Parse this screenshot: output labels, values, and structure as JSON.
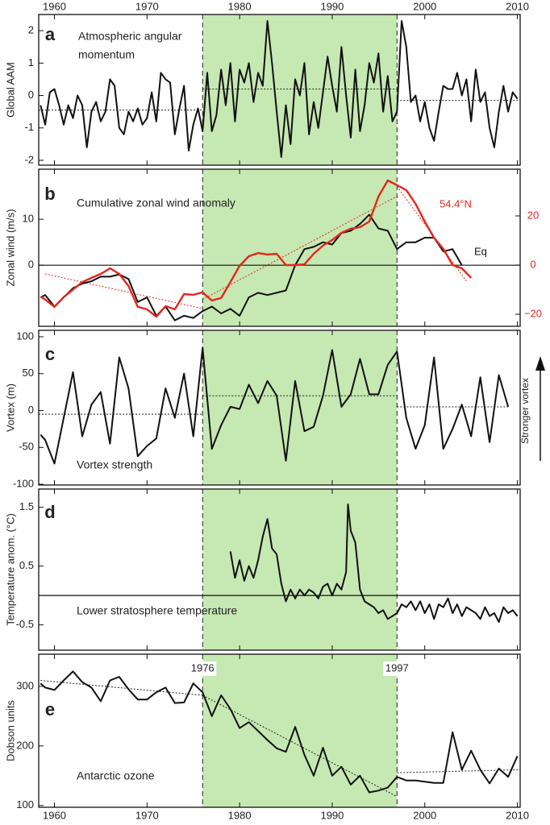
{
  "chart_data": [
    {
      "type": "line",
      "title": [
        "Atmospheric angular",
        "momentum"
      ],
      "letter": "a",
      "ylabel": "Global AAM",
      "xlim": [
        1958.3,
        2010.3
      ],
      "xticks": [
        1960,
        1970,
        1980,
        1990,
        2000,
        2010
      ],
      "xtick_labels": "top",
      "ylim": [
        -2.15,
        2.5
      ],
      "yticks": [
        -2,
        -1,
        0,
        1,
        2
      ],
      "highlight": [
        1976,
        1997
      ],
      "highlight_color": "#c6e8b2",
      "x": [
        1958.5,
        1959,
        1959.5,
        1960,
        1960.5,
        1961,
        1961.5,
        1962,
        1962.5,
        1963,
        1963.5,
        1964,
        1964.5,
        1965,
        1965.5,
        1966,
        1966.5,
        1967,
        1967.5,
        1968,
        1968.5,
        1969,
        1969.5,
        1970,
        1970.5,
        1971,
        1971.5,
        1972,
        1972.5,
        1973,
        1973.5,
        1974,
        1974.5,
        1975,
        1975.5,
        1976,
        1976.5,
        1977,
        1977.5,
        1978,
        1978.5,
        1979,
        1979.5,
        1980,
        1980.5,
        1981,
        1981.5,
        1982,
        1982.5,
        1983,
        1983.5,
        1984,
        1984.5,
        1985,
        1985.5,
        1986,
        1986.5,
        1987,
        1987.5,
        1988,
        1988.5,
        1989,
        1989.5,
        1990,
        1990.5,
        1991,
        1991.5,
        1992,
        1992.5,
        1993,
        1993.5,
        1994,
        1994.5,
        1995,
        1995.5,
        1996,
        1996.5,
        1997,
        1997.5,
        1998,
        1998.5,
        1999,
        1999.5,
        2000,
        2000.5,
        2001,
        2001.5,
        2002,
        2002.5,
        2003,
        2003.5,
        2004,
        2004.5,
        2005,
        2005.5,
        2006,
        2006.5,
        2007,
        2007.5,
        2008,
        2008.5,
        2009,
        2009.5,
        2010
      ],
      "series": [
        {
          "color": "#111111",
          "values": [
            -0.3,
            -0.9,
            0.1,
            0.2,
            -0.3,
            -0.9,
            -0.3,
            -0.7,
            0,
            -0.3,
            -1.6,
            -0.5,
            -0.2,
            -0.8,
            -0.5,
            0.5,
            0.3,
            -1.0,
            -1.2,
            -0.5,
            -0.8,
            -0.4,
            -0.9,
            -0.7,
            0.1,
            -0.8,
            0.7,
            0.5,
            0.4,
            -1.2,
            -0.4,
            0.3,
            -1.7,
            -0.9,
            -0.4,
            -1.1,
            0.7,
            -1.1,
            -0.6,
            0.8,
            -0.3,
            1.0,
            -0.8,
            0.8,
            0.4,
            1.0,
            -0.2,
            0.7,
            0.3,
            2.3,
            1.0,
            -0.5,
            -1.9,
            -0.3,
            -1.5,
            0.5,
            0,
            1.0,
            -1.2,
            -0.2,
            -1.0,
            0.1,
            1.2,
            0.3,
            -0.5,
            1.5,
            0,
            -1.3,
            0.8,
            -1.1,
            -0.3,
            1.0,
            0.4,
            1.3,
            -0.5,
            0.6,
            -0.8,
            -0.5,
            2.3,
            1.5,
            -0.2,
            0,
            -0.8,
            -0.2,
            -1.0,
            -1.4,
            -0.5,
            0.3,
            0.2,
            0.2,
            0.7,
            0,
            0.5,
            -0.8,
            0.8,
            -0.2,
            0.1,
            -1.0,
            -1.6,
            -0.5,
            0.3,
            -0.5,
            0.1,
            -0.1
          ]
        }
      ],
      "reference_lines": [
        {
          "x": [
            1958.3,
            1976
          ],
          "values": [
            -0.45,
            -0.45
          ]
        },
        {
          "x": [
            1976,
            1997
          ],
          "values": [
            0.2,
            0.2
          ]
        },
        {
          "x": [
            1997,
            2010.3
          ],
          "values": [
            -0.15,
            -0.15
          ]
        }
      ]
    },
    {
      "type": "line",
      "title": [
        "Cumulative zonal wind anomaly"
      ],
      "letter": "b",
      "ylabel": "Zonal wind (m/s)",
      "xlim": [
        1958.3,
        2010.3
      ],
      "xticks": [
        1960,
        1970,
        1980,
        1990,
        2000,
        2010
      ],
      "ylim": [
        -13.3,
        20.9
      ],
      "yticks": [
        0,
        10
      ],
      "y2lim": [
        -24.9,
        39.0
      ],
      "y2ticks": [
        {
          "value": -20,
          "label": "−20"
        },
        0,
        20
      ],
      "y2_color": "#e8251c",
      "zero_line": true,
      "highlight": [
        1976,
        1997
      ],
      "highlight_color": "#c6e8b2",
      "x": [
        1958.5,
        1959,
        1960,
        1961,
        1962,
        1963,
        1964,
        1965,
        1966,
        1967,
        1968,
        1969,
        1970,
        1971,
        1972,
        1973,
        1974,
        1975,
        1976,
        1977,
        1978,
        1979,
        1980,
        1981,
        1982,
        1983,
        1984,
        1985,
        1986,
        1987,
        1988,
        1989,
        1990,
        1991,
        1992,
        1993,
        1994,
        1995,
        1996,
        1997,
        1998,
        1999,
        2000,
        2001,
        2002,
        2003,
        2004,
        2005
      ],
      "series": [
        {
          "name": "Eq",
          "color": "#111111",
          "values": [
            -7,
            -6.5,
            -9,
            -7,
            -5,
            -4,
            -3.5,
            -2.5,
            -2.5,
            -2,
            -3,
            -8,
            -7,
            -11,
            -9,
            -12,
            -11,
            -11.5,
            -10,
            -9,
            -10.5,
            -9.5,
            -11,
            -7,
            -6,
            -6.5,
            -6,
            -5.5,
            0,
            3.5,
            4,
            5,
            4.5,
            7,
            7.5,
            9,
            11,
            8,
            7.5,
            3.5,
            5,
            5,
            6,
            6,
            3,
            3.5,
            0,
            null
          ]
        },
        {
          "name": "54.4°N",
          "color": "#e8251c",
          "axis": "y2",
          "values": [
            -12.8,
            -14,
            -17,
            -13,
            -10,
            -6.9,
            -5.2,
            -3.6,
            -1.3,
            -3.6,
            -8.5,
            -17,
            -18,
            -21,
            -16.7,
            -18,
            -11.8,
            -12.1,
            -11.1,
            -14.4,
            -13.4,
            -6.9,
            -0.3,
            3.6,
            4.9,
            4.3,
            4.6,
            0,
            0,
            0.3,
            4.6,
            7.9,
            10.2,
            13.1,
            14.8,
            15.4,
            17.7,
            27.9,
            34.4,
            32.5,
            30.5,
            24.9,
            17.7,
            11.1,
            6.6,
            0,
            -1.3,
            -5.2
          ]
        }
      ],
      "reference_lines": [
        {
          "x": [
            1959,
            1976
          ],
          "values": [
            -3.6,
            -17.7
          ],
          "color": "#e8251c",
          "axis": "y2"
        },
        {
          "x": [
            1976,
            1997
          ],
          "values": [
            -14,
            28
          ],
          "color": "#e8251c",
          "axis": "y2"
        },
        {
          "x": [
            1997,
            2004.5
          ],
          "values": [
            32,
            -6.5
          ],
          "color": "#e8251c",
          "axis": "y2"
        }
      ]
    },
    {
      "type": "line",
      "title": [
        "Vortex strength"
      ],
      "letter": "c",
      "ylabel": "Vortex (m)",
      "side_label": "Stronger vortex",
      "xlim": [
        1958.3,
        2010.3
      ],
      "xticks": [
        1960,
        1970,
        1980,
        1990,
        2000,
        2010
      ],
      "ylim": [
        -101,
        108.7
      ],
      "yticks": [
        -100,
        -50,
        0,
        50,
        100
      ],
      "highlight": [
        1976,
        1997
      ],
      "highlight_color": "#c6e8b2",
      "x": [
        1958.5,
        1959,
        1960,
        1961,
        1962,
        1963,
        1964,
        1965,
        1966,
        1967,
        1968,
        1969,
        1970,
        1971,
        1972,
        1973,
        1974,
        1975,
        1976,
        1977,
        1978,
        1979,
        1980,
        1981,
        1982,
        1983,
        1984,
        1985,
        1986,
        1987,
        1988,
        1989,
        1990,
        1991,
        1992,
        1993,
        1994,
        1995,
        1996,
        1997,
        1998,
        1999,
        2000,
        2001,
        2002,
        2003,
        2004,
        2005,
        2006,
        2007,
        2008,
        2009
      ],
      "series": [
        {
          "color": "#111111",
          "values": [
            -33,
            -40,
            -72,
            -10,
            52,
            -35,
            8,
            25,
            -45,
            72,
            30,
            -62,
            -48,
            -38,
            30,
            -10,
            50,
            -35,
            85,
            -52,
            -20,
            5,
            2,
            35,
            10,
            40,
            20,
            -68,
            40,
            -28,
            -22,
            20,
            82,
            5,
            22,
            70,
            22,
            22,
            62,
            80,
            -10,
            -52,
            -20,
            72,
            -52,
            -25,
            8,
            -35,
            45,
            -43,
            48,
            5
          ]
        }
      ],
      "reference_lines": [
        {
          "x": [
            1958.3,
            1976
          ],
          "values": [
            -5,
            -5
          ]
        },
        {
          "x": [
            1976,
            1997
          ],
          "values": [
            20,
            20
          ]
        },
        {
          "x": [
            1997,
            2009
          ],
          "values": [
            5,
            5
          ]
        }
      ]
    },
    {
      "type": "line",
      "title": [
        "Lower stratosphere temperature"
      ],
      "letter": "d",
      "ylabel": "Temperature anom. (°C)",
      "xlim": [
        1958.3,
        2010.3
      ],
      "xticks": [
        1960,
        1970,
        1980,
        1990,
        2000,
        2010
      ],
      "ylim": [
        -0.93,
        1.81
      ],
      "yticks": [
        -0.5,
        0.5,
        1.5
      ],
      "zero_line": true,
      "highlight": [
        1976,
        1997
      ],
      "highlight_color": "#c6e8b2",
      "x": [
        1979,
        1979.5,
        1980,
        1980.5,
        1981,
        1981.5,
        1982,
        1982.5,
        1983,
        1983.5,
        1984,
        1984.5,
        1985,
        1985.5,
        1986,
        1986.5,
        1987,
        1987.5,
        1988,
        1988.5,
        1989,
        1989.5,
        1990,
        1990.5,
        1991,
        1991.5,
        1991.7,
        1992,
        1992.5,
        1993,
        1993.5,
        1994,
        1994.5,
        1995,
        1995.5,
        1996,
        1996.5,
        1997,
        1997.5,
        1998,
        1998.5,
        1999,
        1999.5,
        2000,
        2000.5,
        2001,
        2001.5,
        2002,
        2002.5,
        2003,
        2003.5,
        2004,
        2004.5,
        2005,
        2005.5,
        2006,
        2006.5,
        2007,
        2007.5,
        2008,
        2008.5,
        2009,
        2009.5,
        2010
      ],
      "series": [
        {
          "color": "#111111",
          "values": [
            0.75,
            0.3,
            0.6,
            0.25,
            0.5,
            0.3,
            0.6,
            1.0,
            1.3,
            0.8,
            0.7,
            0.2,
            -0.1,
            0.1,
            -0.05,
            0.1,
            0,
            0.1,
            0.05,
            -0.05,
            0.15,
            0.2,
            0,
            0.2,
            0.1,
            0.4,
            1.55,
            1.1,
            0.9,
            0.1,
            -0.1,
            -0.15,
            -0.2,
            -0.3,
            -0.25,
            -0.4,
            -0.35,
            -0.3,
            -0.15,
            -0.2,
            -0.1,
            -0.25,
            -0.1,
            -0.3,
            -0.15,
            -0.4,
            -0.15,
            -0.2,
            -0.05,
            -0.3,
            -0.15,
            -0.35,
            -0.2,
            -0.25,
            -0.3,
            -0.4,
            -0.2,
            -0.35,
            -0.3,
            -0.45,
            -0.2,
            -0.3,
            -0.25,
            -0.35
          ]
        }
      ]
    },
    {
      "type": "line",
      "title": [
        "Antarctic ozone"
      ],
      "letter": "e",
      "ylabel": "Dobson units",
      "xlim": [
        1958.3,
        2010.3
      ],
      "xticks": [
        1960,
        1970,
        1980,
        1990,
        2000,
        2010
      ],
      "xtick_labels": "bottom",
      "ylim": [
        97,
        354
      ],
      "yticks": [
        100,
        200,
        300
      ],
      "highlight": [
        1976,
        1997
      ],
      "highlight_color": "#c6e8b2",
      "annotations": [
        {
          "text": "1976",
          "x": 1976
        },
        {
          "text": "1997",
          "x": 1997
        }
      ],
      "x": [
        1958.5,
        1959,
        1960,
        1961,
        1962,
        1963,
        1964,
        1965,
        1966,
        1967,
        1968,
        1969,
        1970,
        1971,
        1972,
        1973,
        1974,
        1975,
        1976,
        1977,
        1978,
        1979,
        1980,
        1981,
        1982,
        1983,
        1984,
        1985,
        1986,
        1987,
        1988,
        1989,
        1990,
        1991,
        1992,
        1993,
        1994,
        1995,
        1996,
        1997,
        1998,
        1999,
        2000,
        2001,
        2002,
        2003,
        2004,
        2005,
        2006,
        2007,
        2008,
        2009,
        2010
      ],
      "series": [
        {
          "color": "#111111",
          "values": [
            305,
            298,
            294,
            310,
            325,
            307,
            298,
            275,
            310,
            316,
            295,
            278,
            278,
            290,
            298,
            272,
            273,
            305,
            290,
            250,
            285,
            262,
            230,
            240,
            225,
            210,
            196,
            190,
            232,
            185,
            150,
            197,
            150,
            165,
            135,
            150,
            122,
            125,
            130,
            148,
            142,
            142,
            140,
            138,
            138,
            223,
            160,
            192,
            160,
            137,
            162,
            148,
            183
          ]
        }
      ],
      "reference_lines": [
        {
          "x": [
            1958.5,
            1976
          ],
          "values": [
            310,
            285
          ]
        },
        {
          "x": [
            1976,
            1997
          ],
          "values": [
            285,
            115
          ]
        },
        {
          "x": [
            1997,
            2010.3
          ],
          "values": [
            155,
            160
          ]
        }
      ]
    }
  ]
}
